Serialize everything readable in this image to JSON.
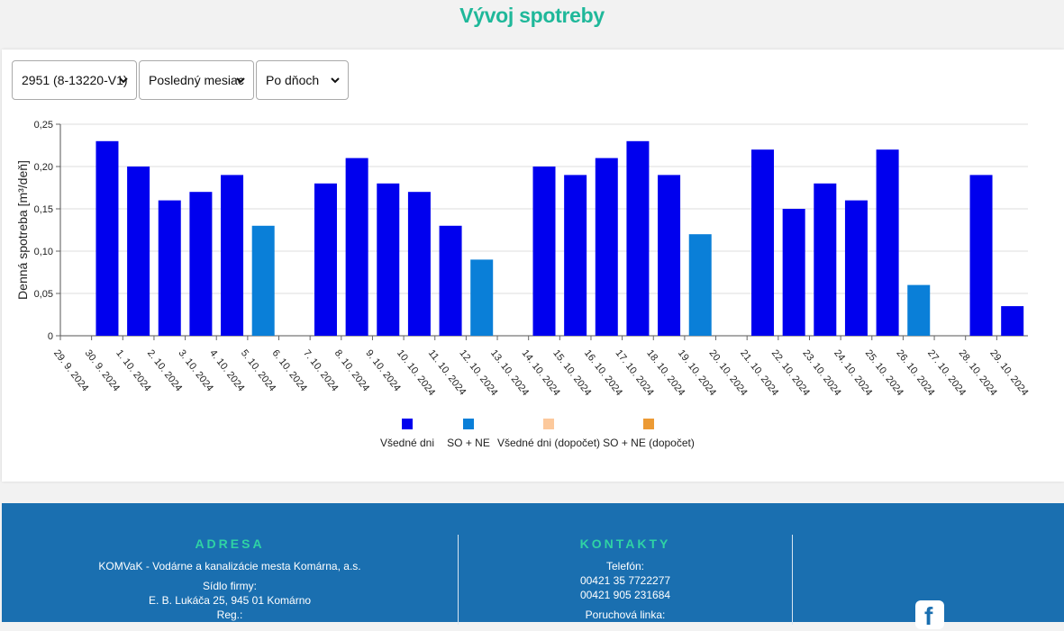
{
  "page": {
    "title": "Vývoj spotreby"
  },
  "filters": {
    "meter": "2951 (8-13220-V1)",
    "period": "Posledný mesiac",
    "granularity": "Po dňoch"
  },
  "chart_data": {
    "type": "bar",
    "ylabel": "Denná spotreba [m³/deň]",
    "ylim": [
      0,
      0.25
    ],
    "yticks": [
      "0",
      "0,05",
      "0,10",
      "0,15",
      "0,20",
      "0,25"
    ],
    "categories": [
      "29. 9. 2024",
      "30. 9. 2024",
      "1. 10. 2024",
      "2. 10. 2024",
      "3. 10. 2024",
      "4. 10. 2024",
      "5. 10. 2024",
      "6. 10. 2024",
      "7. 10. 2024",
      "8. 10. 2024",
      "9. 10. 2024",
      "10. 10. 2024",
      "11. 10. 2024",
      "12. 10. 2024",
      "13. 10. 2024",
      "14. 10. 2024",
      "15. 10. 2024",
      "16. 10. 2024",
      "17. 10. 2024",
      "18. 10. 2024",
      "19. 10. 2024",
      "20. 10. 2024",
      "21. 10. 2024",
      "22. 10. 2024",
      "23. 10. 2024",
      "24. 10. 2024",
      "25. 10. 2024",
      "26. 10. 2024",
      "27. 10. 2024",
      "28. 10. 2024",
      "29. 10. 2024"
    ],
    "values": [
      0,
      0.23,
      0.2,
      0.16,
      0.17,
      0.19,
      0.13,
      0,
      0.18,
      0.21,
      0.18,
      0.17,
      0.13,
      0.09,
      0,
      0.2,
      0.19,
      0.21,
      0.23,
      0.19,
      0.12,
      0,
      0.22,
      0.15,
      0.18,
      0.16,
      0.22,
      0.06,
      0,
      0.19,
      0.035
    ],
    "kinds": [
      "weekend",
      "weekday",
      "weekday",
      "weekday",
      "weekday",
      "weekday",
      "weekend",
      "weekend",
      "weekday",
      "weekday",
      "weekday",
      "weekday",
      "weekday",
      "weekend",
      "weekend",
      "weekday",
      "weekday",
      "weekday",
      "weekday",
      "weekday",
      "weekend",
      "weekend",
      "weekday",
      "weekday",
      "weekday",
      "weekday",
      "weekday",
      "weekend",
      "weekend",
      "weekday",
      "weekday"
    ],
    "colors": {
      "weekday": "#0000ee",
      "weekend": "#0a7fd8",
      "weekday_estimated": "#fcc99c",
      "weekend_estimated": "#ec9a34"
    },
    "legend": [
      {
        "key": "weekday",
        "label": "Všedné dni"
      },
      {
        "key": "weekend",
        "label": "SO + NE"
      },
      {
        "key": "weekday_estimated",
        "label": "Všedné dni (dopočet)"
      },
      {
        "key": "weekend_estimated",
        "label": "SO + NE (dopočet)"
      }
    ],
    "grid": true,
    "legend_position": "bottom"
  },
  "footer": {
    "address": {
      "heading": "ADRESA",
      "company": "KOMVaK - Vodárne a kanalizácie mesta Komárna, a.s.",
      "seat_label": "Sídlo firmy:",
      "seat_value": "E. B. Lukáča 25, 945 01 Komárno",
      "reg_label": "Reg.:"
    },
    "contacts": {
      "heading": "KONTAKTY",
      "phone_label": "Telefón:",
      "phone1": "00421 35 7722277",
      "phone2": "00421 905 231684",
      "emergency_label": "Poruchová linka:"
    },
    "social_icon": "facebook-icon"
  }
}
